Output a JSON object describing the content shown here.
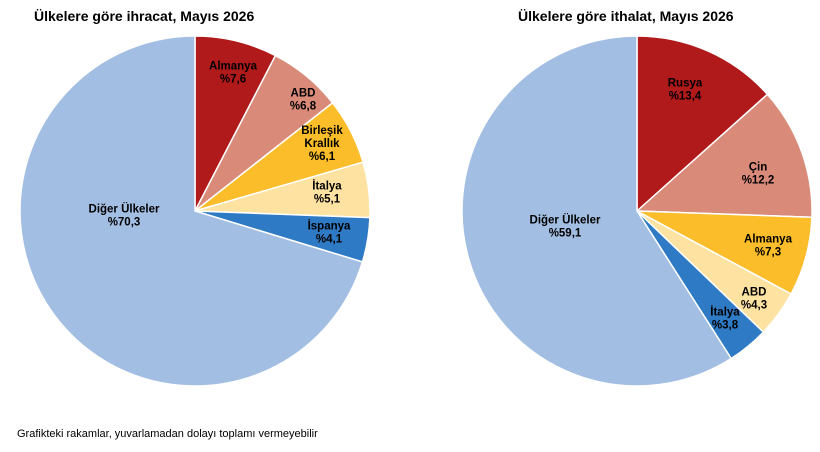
{
  "footnote": "Grafikteki rakamlar, yuvarlamadan dolayı toplamı vermeyebilir",
  "chart_data": [
    {
      "type": "pie",
      "title": "Ülkelere göre ihracat, Mayıs 2026",
      "slices": [
        {
          "label": [
            "Almanya"
          ],
          "value_text": "%7,6",
          "value": 7.6,
          "color": "#b01a1a",
          "text_color": "#000000"
        },
        {
          "label": [
            "ABD"
          ],
          "value_text": "%6,8",
          "value": 6.8,
          "color": "#d98a78",
          "text_color": "#000000"
        },
        {
          "label": [
            "Birleşik",
            "Krallık"
          ],
          "value_text": "%6,1",
          "value": 6.1,
          "color": "#fbbd2a",
          "text_color": "#000000"
        },
        {
          "label": [
            "İtalya"
          ],
          "value_text": "%5,1",
          "value": 5.1,
          "color": "#fde2a2",
          "text_color": "#000000"
        },
        {
          "label": [
            "İspanya"
          ],
          "value_text": "%4,1",
          "value": 4.1,
          "color": "#2f7ac4",
          "text_color": "#000000"
        },
        {
          "label": [
            "Diğer Ülkeler"
          ],
          "value_text": "%70,3",
          "value": 70.3,
          "color": "#a3bee3",
          "text_color": "#000000"
        }
      ]
    },
    {
      "type": "pie",
      "title": "Ülkelere göre ithalat, Mayıs 2026",
      "slices": [
        {
          "label": [
            "Rusya"
          ],
          "value_text": "%13,4",
          "value": 13.4,
          "color": "#b01a1a",
          "text_color": "#000000"
        },
        {
          "label": [
            "Çin"
          ],
          "value_text": "%12,2",
          "value": 12.2,
          "color": "#d98a78",
          "text_color": "#000000"
        },
        {
          "label": [
            "Almanya"
          ],
          "value_text": "%7,3",
          "value": 7.3,
          "color": "#fbbd2a",
          "text_color": "#000000"
        },
        {
          "label": [
            "ABD"
          ],
          "value_text": "%4,3",
          "value": 4.3,
          "color": "#fde2a2",
          "text_color": "#000000"
        },
        {
          "label": [
            "İtalya"
          ],
          "value_text": "%3,8",
          "value": 3.8,
          "color": "#2f7ac4",
          "text_color": "#000000"
        },
        {
          "label": [
            "Diğer Ülkeler"
          ],
          "value_text": "%59,1",
          "value": 59.1,
          "color": "#a3bee3",
          "text_color": "#000000"
        }
      ]
    }
  ]
}
